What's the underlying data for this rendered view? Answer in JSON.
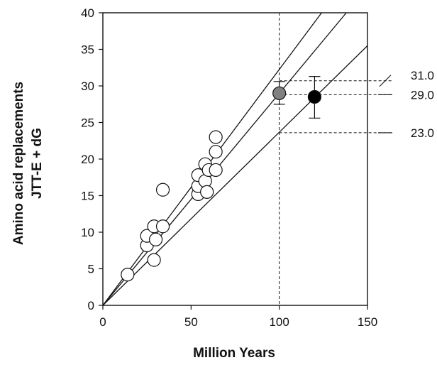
{
  "chart_data": {
    "type": "scatter",
    "title": "",
    "xlabel": "Million Years",
    "ylabel_lines": [
      "Amino acid replacements",
      "JTT-E + dG"
    ],
    "xlim": [
      0,
      150
    ],
    "ylim": [
      0,
      40
    ],
    "x_ticks": [
      0,
      50,
      100,
      150
    ],
    "y_ticks": [
      0,
      5,
      10,
      15,
      20,
      25,
      30,
      35,
      40
    ],
    "grid": false,
    "legend": "none",
    "series": [
      {
        "marker": "open-circle",
        "points": [
          [
            14,
            4.2
          ],
          [
            25,
            8.2
          ],
          [
            25,
            9.5
          ],
          [
            29,
            6.2
          ],
          [
            29,
            10.8
          ],
          [
            30,
            9.0
          ],
          [
            34,
            10.8
          ],
          [
            34,
            15.8
          ],
          [
            54,
            15.2
          ],
          [
            54,
            16.3
          ],
          [
            54,
            17.8
          ],
          [
            58,
            19.3
          ],
          [
            58,
            17.0
          ],
          [
            59,
            15.5
          ],
          [
            60,
            18.5
          ],
          [
            64,
            18.5
          ],
          [
            64,
            21.0
          ],
          [
            64,
            23.0
          ]
        ]
      },
      {
        "marker": "gray-circle",
        "points": [
          [
            100,
            29.0
          ]
        ],
        "error": [
          27.5,
          30.6
        ]
      },
      {
        "marker": "black-circle",
        "points": [
          [
            120,
            28.5
          ]
        ],
        "error": [
          25.6,
          31.3
        ]
      }
    ],
    "regression_lines": [
      {
        "from": [
          0,
          0
        ],
        "to": [
          124,
          40
        ]
      },
      {
        "from": [
          0,
          0
        ],
        "to": [
          138,
          40
        ]
      },
      {
        "from": [
          0,
          0
        ],
        "to": [
          150,
          35.5
        ]
      }
    ],
    "reference_lines": {
      "vertical_x": 100,
      "horizontal": [
        30.7,
        28.8,
        23.6
      ]
    },
    "callouts": [
      {
        "label": "31.0",
        "y": 30.7
      },
      {
        "label": "29.0",
        "y": 28.8
      },
      {
        "label": "23.0",
        "y": 23.6
      }
    ],
    "colors": {
      "axis": "#111111",
      "open_marker_fill": "#ffffff",
      "gray_marker_fill": "#808080",
      "black_marker_fill": "#000000"
    }
  }
}
